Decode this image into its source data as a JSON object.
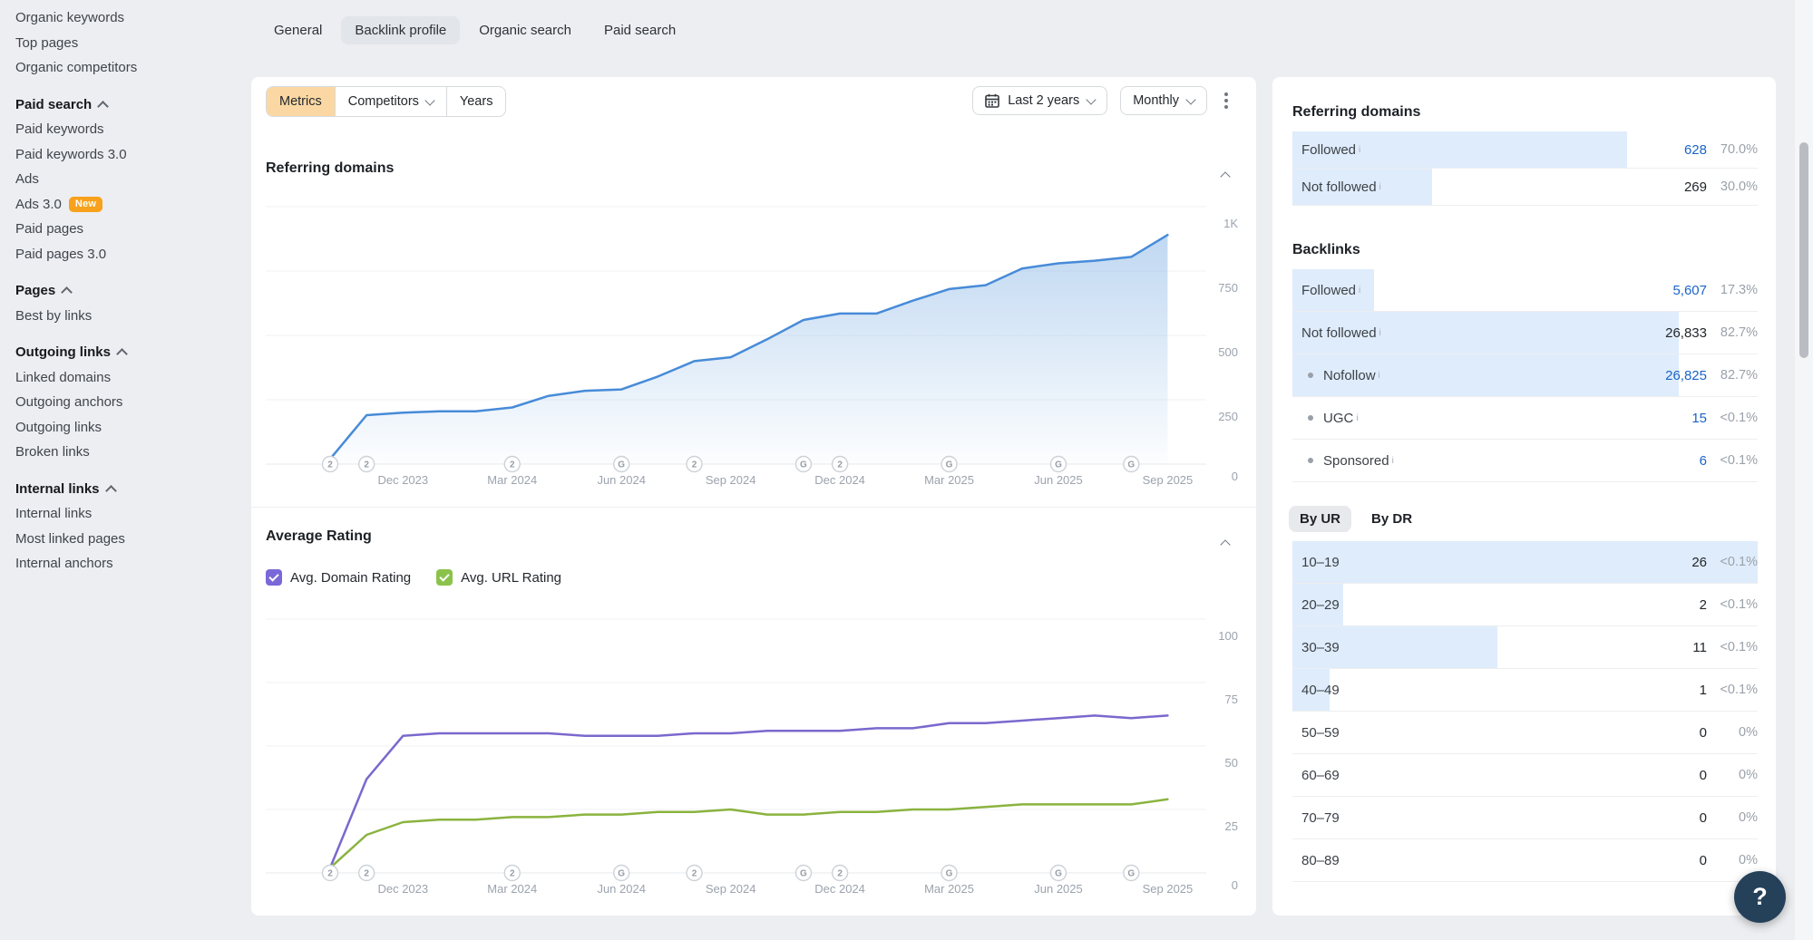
{
  "sidebar": {
    "items": [
      {
        "label": "Organic keywords",
        "type": "link"
      },
      {
        "label": "Top pages",
        "type": "link"
      },
      {
        "label": "Organic competitors",
        "type": "link"
      },
      {
        "label": "Paid search",
        "type": "header"
      },
      {
        "label": "Paid keywords",
        "type": "link"
      },
      {
        "label": "Paid keywords 3.0",
        "type": "link"
      },
      {
        "label": "Ads",
        "type": "link"
      },
      {
        "label": "Ads 3.0",
        "type": "link",
        "badge": "New"
      },
      {
        "label": "Paid pages",
        "type": "link"
      },
      {
        "label": "Paid pages 3.0",
        "type": "link"
      },
      {
        "label": "Pages",
        "type": "header"
      },
      {
        "label": "Best by links",
        "type": "link"
      },
      {
        "label": "Outgoing links",
        "type": "header"
      },
      {
        "label": "Linked domains",
        "type": "link"
      },
      {
        "label": "Outgoing anchors",
        "type": "link"
      },
      {
        "label": "Outgoing links",
        "type": "link"
      },
      {
        "label": "Broken links",
        "type": "link"
      },
      {
        "label": "Internal links",
        "type": "header"
      },
      {
        "label": "Internal links",
        "type": "link"
      },
      {
        "label": "Most linked pages",
        "type": "link"
      },
      {
        "label": "Internal anchors",
        "type": "link"
      }
    ]
  },
  "tabs": {
    "items": [
      {
        "label": "General",
        "active": false
      },
      {
        "label": "Backlink profile",
        "active": true
      },
      {
        "label": "Organic search",
        "active": false
      },
      {
        "label": "Paid search",
        "active": false
      }
    ]
  },
  "toolbar": {
    "segments": [
      {
        "label": "Metrics",
        "active": true,
        "chevron": false
      },
      {
        "label": "Competitors",
        "active": false,
        "chevron": true
      },
      {
        "label": "Years",
        "active": false,
        "chevron": false
      }
    ],
    "date_range": "Last 2 years",
    "granularity": "Monthly"
  },
  "sections": {
    "referring_domains_title": "Referring domains",
    "average_rating_title": "Average Rating",
    "legend": [
      {
        "label": "Avg. Domain Rating",
        "color": "#7b68d8"
      },
      {
        "label": "Avg. URL Rating",
        "color": "#8bc34a"
      }
    ]
  },
  "chart_data": [
    {
      "type": "area",
      "title": "Referring domains",
      "x": [
        "Oct 2023",
        "Nov 2023",
        "Dec 2023",
        "Jan 2024",
        "Feb 2024",
        "Mar 2024",
        "Apr 2024",
        "May 2024",
        "Jun 2024",
        "Jul 2024",
        "Aug 2024",
        "Sep 2024",
        "Oct 2024",
        "Nov 2024",
        "Dec 2024",
        "Jan 2025",
        "Feb 2025",
        "Mar 2025",
        "Apr 2025",
        "May 2025",
        "Jun 2025",
        "Jul 2025",
        "Aug 2025",
        "Sep 2025"
      ],
      "values": [
        20,
        190,
        200,
        205,
        205,
        220,
        265,
        285,
        290,
        340,
        400,
        415,
        485,
        560,
        585,
        585,
        635,
        680,
        695,
        760,
        780,
        790,
        805,
        890
      ],
      "ylim": [
        0,
        1000
      ],
      "yticks": [
        "1K",
        "750",
        "500",
        "250",
        "0"
      ],
      "x_tick_labels": [
        "Dec 2023",
        "Mar 2024",
        "Jun 2024",
        "Sep 2024",
        "Dec 2024",
        "Mar 2025",
        "Jun 2025",
        "Sep 2025"
      ],
      "axis_markers": [
        {
          "x": "Oct 2023",
          "glyph": "2"
        },
        {
          "x": "Nov 2023",
          "glyph": "2"
        },
        {
          "x": "Mar 2024",
          "glyph": "2"
        },
        {
          "x": "Jun 2024",
          "glyph": "G"
        },
        {
          "x": "Aug 2024",
          "glyph": "2"
        },
        {
          "x": "Nov 2024",
          "glyph": "G"
        },
        {
          "x": "Dec 2024",
          "glyph": "2"
        },
        {
          "x": "Mar 2025",
          "glyph": "G"
        },
        {
          "x": "Jun 2025",
          "glyph": "G"
        },
        {
          "x": "Aug 2025",
          "glyph": "G"
        }
      ],
      "line_color": "#478bd8",
      "grid": true,
      "legend_position": "none"
    },
    {
      "type": "line",
      "title": "Average Rating",
      "x": [
        "Oct 2023",
        "Nov 2023",
        "Dec 2023",
        "Jan 2024",
        "Feb 2024",
        "Mar 2024",
        "Apr 2024",
        "May 2024",
        "Jun 2024",
        "Jul 2024",
        "Aug 2024",
        "Sep 2024",
        "Oct 2024",
        "Nov 2024",
        "Dec 2024",
        "Jan 2025",
        "Feb 2025",
        "Mar 2025",
        "Apr 2025",
        "May 2025",
        "Jun 2025",
        "Jul 2025",
        "Aug 2025",
        "Sep 2025"
      ],
      "series": [
        {
          "name": "Avg. Domain Rating",
          "color": "#7b68cd",
          "values": [
            2,
            37,
            54,
            55,
            55,
            55,
            55,
            54,
            54,
            54,
            55,
            55,
            56,
            56,
            56,
            57,
            57,
            59,
            59,
            60,
            61,
            62,
            61,
            62
          ]
        },
        {
          "name": "Avg. URL Rating",
          "color": "#8ab33f",
          "values": [
            2,
            15,
            20,
            21,
            21,
            22,
            22,
            23,
            23,
            24,
            24,
            25,
            23,
            23,
            24,
            24,
            25,
            25,
            26,
            27,
            27,
            27,
            27,
            29
          ]
        }
      ],
      "ylim": [
        0,
        100
      ],
      "yticks": [
        "100",
        "75",
        "50",
        "25",
        "0"
      ],
      "x_tick_labels": [
        "Dec 2023",
        "Mar 2024",
        "Jun 2024",
        "Sep 2024",
        "Dec 2024",
        "Mar 2025",
        "Jun 2025",
        "Sep 2025"
      ],
      "axis_markers": [
        {
          "x": "Oct 2023",
          "glyph": "2"
        },
        {
          "x": "Nov 2023",
          "glyph": "2"
        },
        {
          "x": "Mar 2024",
          "glyph": "2"
        },
        {
          "x": "Jun 2024",
          "glyph": "G"
        },
        {
          "x": "Aug 2024",
          "glyph": "2"
        },
        {
          "x": "Nov 2024",
          "glyph": "G"
        },
        {
          "x": "Dec 2024",
          "glyph": "2"
        },
        {
          "x": "Mar 2025",
          "glyph": "G"
        },
        {
          "x": "Jun 2025",
          "glyph": "G"
        },
        {
          "x": "Aug 2025",
          "glyph": "G"
        }
      ],
      "grid": true,
      "legend_position": "top-left-checkboxes"
    }
  ],
  "panel": {
    "referring_domains": {
      "title": "Referring domains",
      "rows": [
        {
          "label": "Followed",
          "info": true,
          "bullet": false,
          "value": "628",
          "value_link": true,
          "pct": "70.0%",
          "bar": 72
        },
        {
          "label": "Not followed",
          "info": true,
          "bullet": false,
          "value": "269",
          "value_link": false,
          "pct": "30.0%",
          "bar": 30
        }
      ]
    },
    "backlinks": {
      "title": "Backlinks",
      "rows": [
        {
          "label": "Followed",
          "info": true,
          "bullet": false,
          "value": "5,607",
          "value_link": true,
          "pct": "17.3%",
          "bar": 17.5
        },
        {
          "label": "Not followed",
          "info": true,
          "bullet": false,
          "value": "26,833",
          "value_link": false,
          "pct": "82.7%",
          "bar": 83
        },
        {
          "label": "Nofollow",
          "info": true,
          "bullet": true,
          "value": "26,825",
          "value_link": true,
          "pct": "82.7%",
          "bar": 83
        },
        {
          "label": "UGC",
          "info": true,
          "bullet": true,
          "value": "15",
          "value_link": true,
          "pct": "<0.1%",
          "bar": 0
        },
        {
          "label": "Sponsored",
          "info": true,
          "bullet": true,
          "value": "6",
          "value_link": true,
          "pct": "<0.1%",
          "bar": 0
        }
      ]
    },
    "rating_tabs": [
      {
        "label": "By UR",
        "active": true
      },
      {
        "label": "By DR",
        "active": false
      }
    ],
    "distribution": {
      "rows": [
        {
          "label": "10–19",
          "value": "26",
          "pct": "<0.1%",
          "bar": 100
        },
        {
          "label": "20–29",
          "value": "2",
          "pct": "<0.1%",
          "bar": 11
        },
        {
          "label": "30–39",
          "value": "11",
          "pct": "<0.1%",
          "bar": 44
        },
        {
          "label": "40–49",
          "value": "1",
          "pct": "<0.1%",
          "bar": 8
        },
        {
          "label": "50–59",
          "value": "0",
          "pct": "0%",
          "bar": 0
        },
        {
          "label": "60–69",
          "value": "0",
          "pct": "0%",
          "bar": 0
        },
        {
          "label": "70–79",
          "value": "0",
          "pct": "0%",
          "bar": 0
        },
        {
          "label": "80–89",
          "value": "0",
          "pct": "0%",
          "bar": 0
        }
      ]
    }
  },
  "help_button": {
    "label": "?"
  },
  "colors": {
    "page_bg": "#eceef1",
    "card_bg": "#ffffff",
    "accent_orange": "#fbd8a3",
    "badge_orange": "#f7a11c",
    "link_blue": "#1b64c8",
    "chart_blue": "#478bd8",
    "chart_purple": "#7b68cd",
    "chart_green": "#8ab33f",
    "row_bar_blue": "#dfecfb",
    "help_navy": "#254059"
  }
}
